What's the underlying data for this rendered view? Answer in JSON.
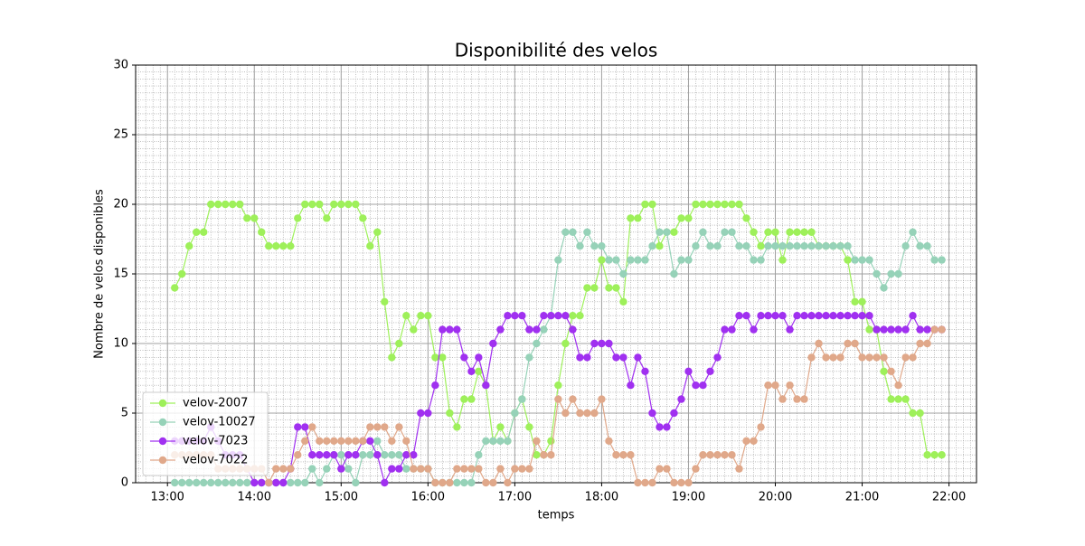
{
  "chart_data": {
    "type": "line",
    "title": "Disponibilité des velos",
    "x_label": "temps",
    "y_label": "Nombre de velos disponibles",
    "x": [
      "13:05",
      "13:10",
      "13:15",
      "13:20",
      "13:25",
      "13:30",
      "13:35",
      "13:40",
      "13:45",
      "13:50",
      "13:55",
      "14:00",
      "14:05",
      "14:10",
      "14:15",
      "14:20",
      "14:25",
      "14:30",
      "14:35",
      "14:40",
      "14:45",
      "14:50",
      "14:55",
      "15:00",
      "15:05",
      "15:10",
      "15:15",
      "15:20",
      "15:25",
      "15:30",
      "15:35",
      "15:40",
      "15:45",
      "15:50",
      "15:55",
      "16:00",
      "16:05",
      "16:10",
      "16:15",
      "16:20",
      "16:25",
      "16:30",
      "16:35",
      "16:40",
      "16:45",
      "16:50",
      "16:55",
      "17:00",
      "17:05",
      "17:10",
      "17:15",
      "17:20",
      "17:25",
      "17:30",
      "17:35",
      "17:40",
      "17:45",
      "17:50",
      "17:55",
      "18:00",
      "18:05",
      "18:10",
      "18:15",
      "18:20",
      "18:25",
      "18:30",
      "18:35",
      "18:40",
      "18:45",
      "18:50",
      "18:55",
      "19:00",
      "19:05",
      "19:10",
      "19:15",
      "19:20",
      "19:25",
      "19:30",
      "19:35",
      "19:40",
      "19:45",
      "19:50",
      "19:55",
      "20:00",
      "20:05",
      "20:10",
      "20:15",
      "20:20",
      "20:25",
      "20:30",
      "20:35",
      "20:40",
      "20:45",
      "20:50",
      "20:55",
      "21:00",
      "21:05",
      "21:10",
      "21:15",
      "21:20",
      "21:25",
      "21:30",
      "21:35",
      "21:40",
      "21:45",
      "21:50",
      "21:55"
    ],
    "series": [
      {
        "name": "velov-2007",
        "color": "#9ef05a",
        "values": [
          14,
          15,
          17,
          18,
          18,
          20,
          20,
          20,
          20,
          20,
          19,
          19,
          18,
          17,
          17,
          17,
          17,
          19,
          20,
          20,
          20,
          19,
          20,
          20,
          20,
          20,
          19,
          17,
          18,
          13,
          9,
          10,
          12,
          11,
          12,
          12,
          9,
          9,
          5,
          4,
          6,
          6,
          8,
          7,
          3,
          4,
          3,
          5,
          6,
          4,
          2,
          2,
          3,
          7,
          10,
          12,
          12,
          14,
          14,
          16,
          14,
          14,
          13,
          19,
          19,
          20,
          20,
          17,
          18,
          18,
          19,
          19,
          20,
          20,
          20,
          20,
          20,
          20,
          20,
          19,
          18,
          17,
          18,
          18,
          16,
          18,
          18,
          18,
          18,
          17,
          17,
          17,
          17,
          16,
          13,
          13,
          11,
          11,
          8,
          6,
          6,
          6,
          5,
          5,
          2,
          2,
          2
        ]
      },
      {
        "name": "velov-10027",
        "color": "#96d2b8",
        "values": [
          0,
          0,
          0,
          0,
          0,
          0,
          0,
          0,
          0,
          0,
          0,
          0,
          0,
          0,
          0,
          0,
          0,
          0,
          0,
          1,
          0,
          1,
          2,
          2,
          1,
          0,
          2,
          2,
          3,
          2,
          2,
          2,
          1,
          1,
          1,
          1,
          0,
          0,
          0,
          0,
          0,
          0,
          2,
          3,
          3,
          3,
          3,
          5,
          6,
          9,
          10,
          11,
          12,
          16,
          18,
          18,
          17,
          18,
          17,
          17,
          16,
          16,
          15,
          16,
          16,
          16,
          17,
          18,
          18,
          15,
          16,
          16,
          17,
          18,
          17,
          17,
          18,
          18,
          17,
          17,
          16,
          16,
          17,
          17,
          17,
          17,
          17,
          17,
          17,
          17,
          17,
          17,
          17,
          17,
          16,
          16,
          16,
          15,
          14,
          15,
          15,
          17,
          18,
          17,
          17,
          16,
          16
        ]
      },
      {
        "name": "velov-7023",
        "color": "#a030f0",
        "values": [
          3,
          3,
          3,
          3,
          3,
          4,
          3,
          2,
          2,
          2,
          1,
          0,
          0,
          0,
          0,
          0,
          1,
          4,
          4,
          2,
          2,
          2,
          2,
          1,
          2,
          2,
          3,
          3,
          2,
          0,
          1,
          1,
          2,
          2,
          5,
          5,
          7,
          11,
          11,
          11,
          9,
          8,
          9,
          7,
          10,
          11,
          12,
          12,
          12,
          11,
          11,
          12,
          12,
          12,
          12,
          11,
          9,
          9,
          10,
          10,
          10,
          9,
          9,
          7,
          9,
          8,
          5,
          4,
          4,
          5,
          6,
          8,
          7,
          7,
          8,
          9,
          11,
          11,
          12,
          12,
          11,
          12,
          12,
          12,
          12,
          11,
          12,
          12,
          12,
          12,
          12,
          12,
          12,
          12,
          12,
          12,
          12,
          11,
          11,
          11,
          11,
          11,
          12,
          11,
          11,
          11,
          11
        ]
      },
      {
        "name": "velov-7022",
        "color": "#e0a88a",
        "values": [
          2,
          2,
          2,
          2,
          2,
          2,
          1,
          1,
          1,
          1,
          1,
          1,
          1,
          0,
          1,
          1,
          1,
          2,
          3,
          4,
          3,
          3,
          3,
          3,
          3,
          3,
          3,
          4,
          4,
          4,
          3,
          4,
          3,
          1,
          1,
          1,
          0,
          0,
          0,
          1,
          1,
          1,
          1,
          0,
          0,
          1,
          0,
          1,
          1,
          1,
          3,
          2,
          2,
          6,
          5,
          6,
          5,
          5,
          5,
          6,
          3,
          2,
          2,
          2,
          0,
          0,
          0,
          1,
          1,
          0,
          0,
          0,
          1,
          2,
          2,
          2,
          2,
          2,
          1,
          3,
          3,
          4,
          7,
          7,
          6,
          7,
          6,
          6,
          9,
          10,
          9,
          9,
          9,
          10,
          10,
          9,
          9,
          9,
          9,
          8,
          7,
          9,
          9,
          10,
          10,
          11,
          11
        ]
      }
    ],
    "xlim": [
      "12:38",
      "22:19"
    ],
    "xticks": [
      "13:00",
      "14:00",
      "15:00",
      "16:00",
      "17:00",
      "18:00",
      "19:00",
      "20:00",
      "21:00",
      "22:00"
    ],
    "ylim": [
      0,
      30
    ],
    "yticks": [
      0,
      5,
      10,
      15,
      20,
      25,
      30
    ],
    "grid": true,
    "minor_grid": true,
    "legend": "lower left"
  }
}
